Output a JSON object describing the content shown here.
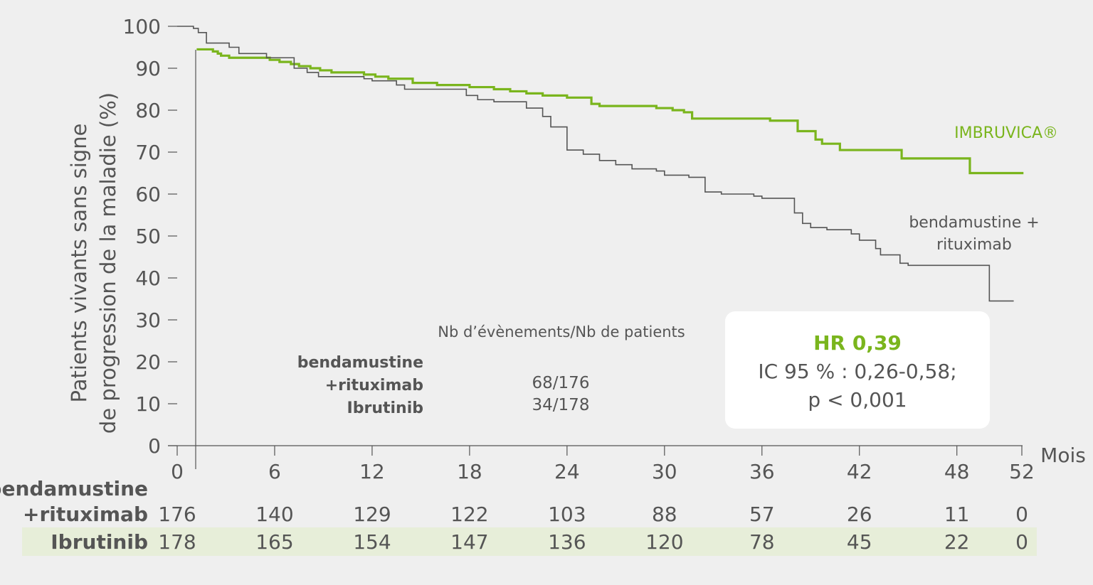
{
  "colors": {
    "imbruvica": "#7ab51d",
    "bendamustine": "#555555",
    "axis": "#555555",
    "background": "#efefef",
    "risk_row_highlight": "#e7eed9"
  },
  "chart_data": {
    "type": "line",
    "title": "",
    "ylabel_line1": "Patients vivants sans signe",
    "ylabel_line2": "de progression de la maladie (%)",
    "xlabel": "Mois",
    "xlim": [
      0,
      52
    ],
    "ylim": [
      0,
      100
    ],
    "x_ticks": [
      0,
      6,
      12,
      18,
      24,
      30,
      36,
      42,
      48,
      52
    ],
    "x_tick_labels": [
      "0",
      "6",
      "12",
      "18",
      "24",
      "30",
      "36",
      "42",
      "48",
      "52"
    ],
    "y_ticks": [
      0,
      10,
      20,
      30,
      40,
      50,
      60,
      70,
      80,
      90,
      100
    ],
    "y_tick_labels": [
      "0",
      "10",
      "20",
      "30",
      "40",
      "50",
      "60",
      "70",
      "80",
      "90",
      "100"
    ],
    "series": [
      {
        "name": "IMBRUVICA®",
        "key": "imbruvica",
        "x": [
          1.2,
          2.2,
          2.5,
          2.7,
          3.2,
          5.0,
          5.7,
          6.3,
          7.0,
          7.5,
          8.2,
          8.8,
          9.5,
          11.5,
          12.2,
          13.0,
          14.5,
          16.0,
          18.0,
          19.5,
          20.5,
          21.5,
          22.5,
          24.0,
          25.5,
          26.0,
          29.5,
          30.5,
          31.2,
          31.7,
          36.5,
          38.2,
          39.3,
          39.7,
          40.8,
          44.0,
          44.6,
          46.3,
          47.2,
          48.0,
          48.8,
          52.1
        ],
        "y": [
          94.5,
          94.0,
          93.5,
          93.0,
          92.5,
          92.5,
          92.0,
          91.5,
          91.0,
          90.5,
          90.0,
          89.5,
          89.0,
          88.5,
          88.0,
          87.5,
          86.5,
          86.0,
          85.5,
          85.0,
          84.5,
          84.0,
          83.5,
          83.0,
          81.5,
          81.0,
          80.5,
          80.0,
          79.5,
          78.0,
          77.5,
          75.0,
          73.0,
          72.0,
          70.5,
          70.5,
          68.5,
          68.5,
          68.5,
          68.5,
          65.0,
          65.0
        ],
        "last_x": 52.1
      },
      {
        "name": "bendamustine + rituximab",
        "key": "bendamustine",
        "x": [
          0,
          1.0,
          1.3,
          1.8,
          3.2,
          3.8,
          5.5,
          7.2,
          8.0,
          8.7,
          11.5,
          12.0,
          13.5,
          14.0,
          17.8,
          18.5,
          19.5,
          21.5,
          22.5,
          23.0,
          24.0,
          25.0,
          26.0,
          27.0,
          28.0,
          29.5,
          30.0,
          31.5,
          32.5,
          33.5,
          35.5,
          36.0,
          38.0,
          38.5,
          39.0,
          40.0,
          41.5,
          42.0,
          43.0,
          43.3,
          44.5,
          45.0,
          46.0,
          50.0,
          51.5
        ],
        "y": [
          100,
          99.5,
          98.5,
          96.0,
          95.0,
          93.5,
          92.5,
          90.0,
          89.0,
          88.0,
          87.5,
          87.0,
          86.0,
          85.0,
          83.5,
          82.5,
          82.0,
          80.5,
          78.5,
          76.0,
          70.5,
          69.5,
          68.0,
          67.0,
          66.0,
          65.5,
          64.5,
          64.0,
          60.5,
          60.0,
          59.5,
          59.0,
          55.5,
          53.0,
          52.0,
          51.5,
          50.5,
          49.0,
          47.0,
          45.5,
          43.5,
          43.0,
          43.0,
          34.5,
          34.5
        ],
        "last_x": 51.5
      }
    ]
  },
  "labels": {
    "imbruvica": "IMBRUVICA®",
    "bendamustine_line1": "bendamustine +",
    "bendamustine_line2": "rituximab"
  },
  "events_table": {
    "header": "Nb d’évènements/Nb de patients",
    "rows": [
      {
        "name": "bendamustine",
        "value": ""
      },
      {
        "name": "+rituximab",
        "value": "68/176"
      },
      {
        "name": "Ibrutinib",
        "value": "34/178"
      }
    ]
  },
  "hr_box": {
    "title": "HR 0,39",
    "line1": "IC 95 % : 0,26-0,58;",
    "line2": "p < 0,001"
  },
  "risk_table": {
    "rows": [
      {
        "name_line1": "bendamustine",
        "name_line2": "+rituximab",
        "values": [
          "176",
          "140",
          "129",
          "122",
          "103",
          "88",
          "57",
          "26",
          "11",
          "0"
        ]
      },
      {
        "name_line1": "",
        "name_line2": "Ibrutinib",
        "values": [
          "178",
          "165",
          "154",
          "147",
          "136",
          "120",
          "78",
          "45",
          "22",
          "0"
        ]
      }
    ]
  }
}
